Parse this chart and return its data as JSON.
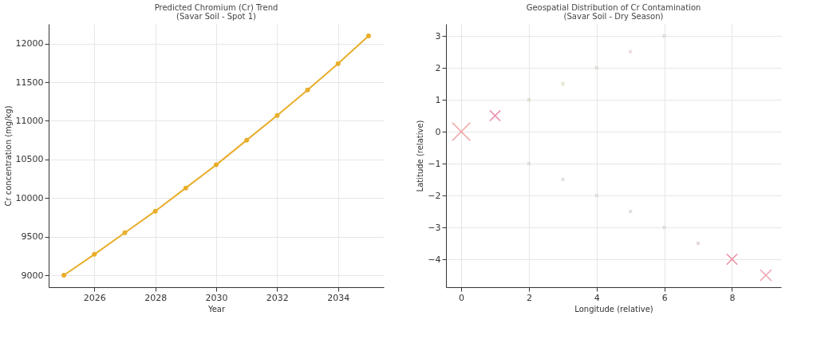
{
  "chart_data": [
    {
      "type": "line",
      "title": "Predicted Chromium (Cr) Trend",
      "subtitle": "(Savar Soil - Spot 1)",
      "xlabel": "Year",
      "ylabel": "Cr concentration (mg/kg)",
      "x": [
        2025,
        2026,
        2027,
        2028,
        2029,
        2030,
        2031,
        2032,
        2033,
        2034,
        2035
      ],
      "series": [
        {
          "color": "#e8ad2a",
          "values": [
            9000,
            9270,
            9550,
            9830,
            10130,
            10430,
            10750,
            11070,
            11400,
            11740,
            12100
          ]
        }
      ],
      "xlim": [
        2024.5,
        2035.5
      ],
      "ylim": [
        8845,
        12255
      ],
      "xticks": [
        2026,
        2028,
        2030,
        2032,
        2034
      ],
      "yticks": [
        9000,
        9500,
        10000,
        10500,
        11000,
        11500,
        12000
      ],
      "grid": true,
      "marker": "circle",
      "line_style": "solid"
    },
    {
      "type": "bubble",
      "title": "Geospatial Distribution of Cr Contamination",
      "subtitle": "(Savar Soil - Dry Season)",
      "xlabel": "Longitude (relative)",
      "ylabel": "Latitude (relative)",
      "x": [
        0,
        1,
        2,
        3,
        4,
        5,
        6,
        2,
        3,
        4,
        5,
        6,
        7,
        8,
        9
      ],
      "values": [
        0,
        0.5,
        1,
        1.5,
        2,
        2.5,
        3,
        -1,
        -1.5,
        -2,
        -2.5,
        -3,
        -3.5,
        -4,
        -4.5
      ],
      "sizes": [
        1,
        0.35,
        0.03,
        0.03,
        0.03,
        0.03,
        0.03,
        0.03,
        0.03,
        0.03,
        0.03,
        0.03,
        0.03,
        0.35,
        0.4
      ],
      "colors": [
        "#f0a0a0",
        "#e890b0",
        "#d8d8c8",
        "#e0e0c0",
        "#d8d8d0",
        "#e8d8d8",
        "#d8d8d8",
        "#d8d8d8",
        "#e0d8d8",
        "#d8d8d8",
        "#d8d8d8",
        "#d8d8d8",
        "#e0d0d0",
        "#e898a8",
        "#f0a0b0"
      ],
      "xlim": [
        -0.45,
        9.45
      ],
      "ylim": [
        -4.875,
        3.375
      ],
      "xticks": [
        0,
        2,
        4,
        6,
        8
      ],
      "yticks": [
        -4,
        -3,
        -2,
        -1,
        0,
        1,
        2,
        3
      ],
      "grid": true,
      "marker": "cross"
    }
  ]
}
